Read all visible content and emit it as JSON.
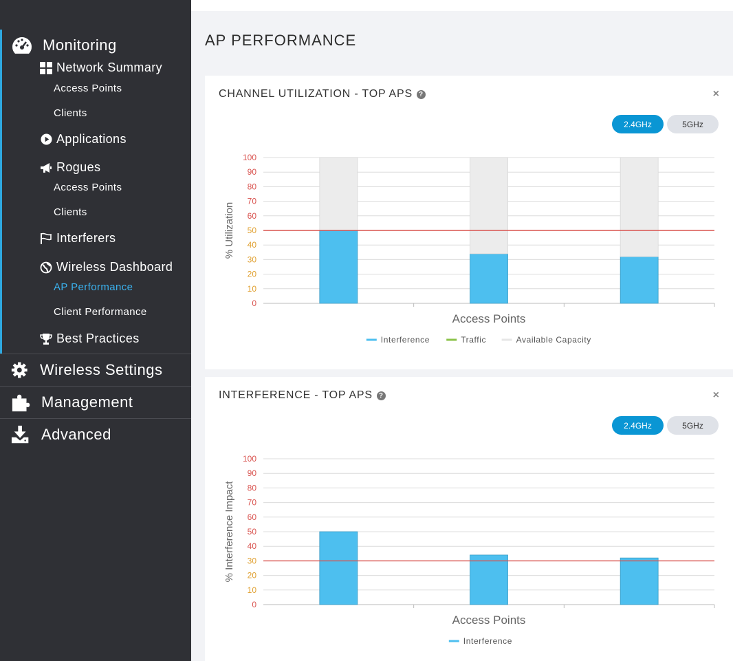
{
  "sidebar": {
    "monitoring": "Monitoring",
    "network_summary": "Network Summary",
    "ns_access_points": "Access Points",
    "ns_clients": "Clients",
    "applications": "Applications",
    "rogues": "Rogues",
    "rogues_access_points": "Access Points",
    "rogues_clients": "Clients",
    "interferers": "Interferers",
    "wireless_dashboard": "Wireless Dashboard",
    "ap_performance": "AP Performance",
    "client_performance": "Client Performance",
    "best_practices": "Best Practices",
    "wireless_settings": "Wireless Settings",
    "management": "Management",
    "advanced": "Advanced"
  },
  "page": {
    "title": "AP PERFORMANCE"
  },
  "card1": {
    "title": "CHANNEL UTILIZATION - TOP APS",
    "close": "×",
    "btn_24": "2.4GHz",
    "btn_5": "5GHz"
  },
  "card2": {
    "title": "INTERFERENCE - TOP APS",
    "close": "×",
    "btn_24": "2.4GHz",
    "btn_5": "5GHz"
  },
  "colors": {
    "interference": "#4dbfef",
    "traffic": "#8bc34a",
    "available": "#ececec",
    "threshold": "#d9534f"
  },
  "chart_data": [
    {
      "type": "bar",
      "stacked": true,
      "categories": [
        "",
        "",
        ""
      ],
      "series": [
        {
          "name": "Interference",
          "values": [
            50,
            34,
            32
          ]
        },
        {
          "name": "Traffic",
          "values": [
            0,
            0,
            0
          ]
        },
        {
          "name": "Available Capacity",
          "values": [
            50,
            66,
            68
          ]
        }
      ],
      "threshold": 50,
      "xlabel": "Access Points",
      "ylabel": "% Utilization",
      "ylim": [
        0,
        100
      ],
      "yticks": [
        0,
        10,
        20,
        30,
        40,
        50,
        60,
        70,
        80,
        90,
        100
      ],
      "grid": true,
      "legend": "bottom-center"
    },
    {
      "type": "bar",
      "categories": [
        "",
        "",
        ""
      ],
      "series": [
        {
          "name": "Interference",
          "values": [
            50,
            34,
            32
          ]
        }
      ],
      "threshold": 30,
      "xlabel": "Access Points",
      "ylabel": "% Interference Impact",
      "ylim": [
        0,
        100
      ],
      "yticks": [
        0,
        10,
        20,
        30,
        40,
        50,
        60,
        70,
        80,
        90,
        100
      ],
      "grid": true,
      "legend": "bottom-center"
    }
  ]
}
